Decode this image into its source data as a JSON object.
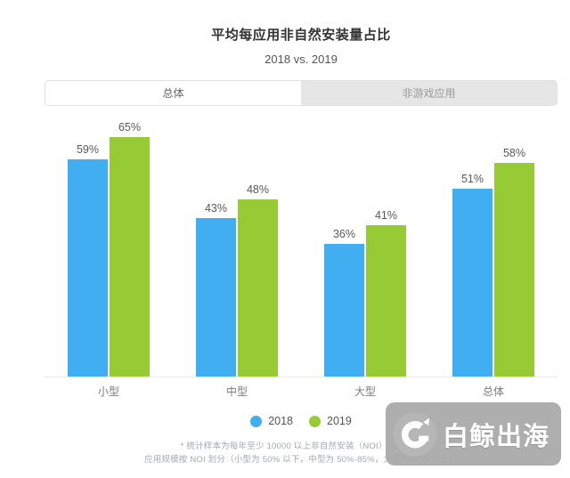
{
  "header": {
    "title": "平均每应用非自然安装量占比",
    "subtitle": "2018 vs. 2019"
  },
  "tabs": [
    {
      "label": "总体",
      "active": true
    },
    {
      "label": "非游戏应用",
      "active": false
    }
  ],
  "chart_data": {
    "type": "bar",
    "title": "平均每应用非自然安装量占比",
    "subtitle": "2018 vs. 2019",
    "categories": [
      "小型",
      "中型",
      "大型",
      "总体"
    ],
    "series": [
      {
        "name": "2018",
        "color": "#41aef2",
        "values": [
          59,
          43,
          36,
          51
        ]
      },
      {
        "name": "2019",
        "color": "#97cb35",
        "values": [
          65,
          48,
          41,
          58
        ]
      }
    ],
    "value_suffix": "%",
    "ylim": [
      0,
      70
    ],
    "grid": false,
    "legend_position": "bottom"
  },
  "footnote": {
    "line1": "* 统计样本为每年至少 10000 以上非自然安装（NOI）的应用；",
    "line2": "应用规模按 NOI 划分（小型为 50% 以下，中型为 50%-85%，大型为 85% 以上）"
  },
  "watermark": {
    "brand": "白鲸出海"
  },
  "colors": {
    "bar_2018": "#41aef2",
    "bar_2019": "#97cb35",
    "axis_line": "#e9e9e9",
    "tab_inactive_bg": "#e6e6e6",
    "watermark_bg": "#a8a8a8"
  }
}
